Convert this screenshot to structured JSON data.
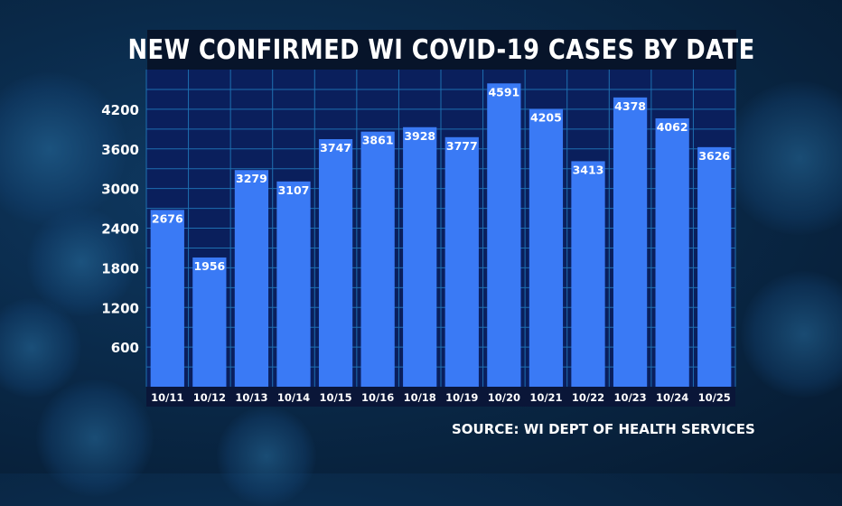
{
  "title": "NEW CONFIRMED WI COVID-19 CASES BY DATE",
  "source": "SOURCE: WI DEPT OF HEALTH SERVICES",
  "colors": {
    "bar": "#3a7af5",
    "plot_bg": "#0a1f5c",
    "grid": "#1e6fb0",
    "axis_band": "#0a1638"
  },
  "chart_data": {
    "type": "bar",
    "title": "NEW CONFIRMED WI COVID-19 CASES BY DATE",
    "xlabel": "",
    "ylabel": "",
    "categories": [
      "10/11",
      "10/12",
      "10/13",
      "10/14",
      "10/15",
      "10/16",
      "10/18",
      "10/19",
      "10/20",
      "10/21",
      "10/22",
      "10/23",
      "10/24",
      "10/25"
    ],
    "values": [
      2676,
      1956,
      3279,
      3107,
      3747,
      3861,
      3928,
      3777,
      4591,
      4205,
      3413,
      4378,
      4062,
      3626
    ],
    "yticks": [
      600,
      1200,
      1800,
      2400,
      3000,
      3600,
      4200
    ],
    "ylim": [
      0,
      4800
    ],
    "grid": true,
    "data_labels": true
  }
}
